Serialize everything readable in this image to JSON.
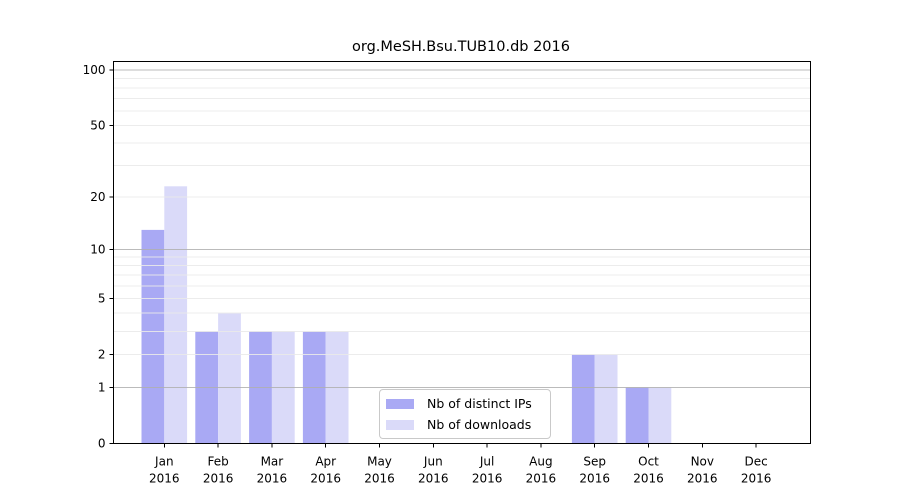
{
  "chart_data": {
    "type": "bar",
    "title": "org.MeSH.Bsu.TUB10.db 2016",
    "categories": [
      "Jan 2016",
      "Feb 2016",
      "Mar 2016",
      "Apr 2016",
      "May 2016",
      "Jun 2016",
      "Jul 2016",
      "Aug 2016",
      "Sep 2016",
      "Oct 2016",
      "Nov 2016",
      "Dec 2016"
    ],
    "series": [
      {
        "name": "Nb of distinct IPs",
        "color": "#a9a9f4",
        "values": [
          13,
          3,
          3,
          3,
          0,
          0,
          0,
          0,
          2,
          1,
          0,
          0
        ]
      },
      {
        "name": "Nb of downloads",
        "color": "#dadaf9",
        "values": [
          23,
          4,
          3,
          3,
          0,
          0,
          0,
          0,
          2,
          1,
          0,
          0
        ]
      }
    ],
    "xlabel": "",
    "ylabel": "",
    "yscale": "symlog",
    "ylim": [
      0,
      112
    ],
    "yticks": [
      0,
      1,
      2,
      5,
      10,
      20,
      50,
      100
    ],
    "ytick_labels": [
      "0",
      "1",
      "2",
      "5",
      "10",
      "20",
      "50",
      "100"
    ],
    "grid_major": [
      1,
      10,
      100
    ],
    "grid_minor": [
      2,
      3,
      4,
      5,
      6,
      7,
      8,
      9,
      20,
      30,
      40,
      50,
      60,
      70,
      80,
      90
    ],
    "legend_position": "lower center",
    "colors": {
      "grid_major": "#b0b0b0",
      "grid_minor": "#eaeaea",
      "spine": "#000000",
      "background": "#ffffff"
    }
  }
}
